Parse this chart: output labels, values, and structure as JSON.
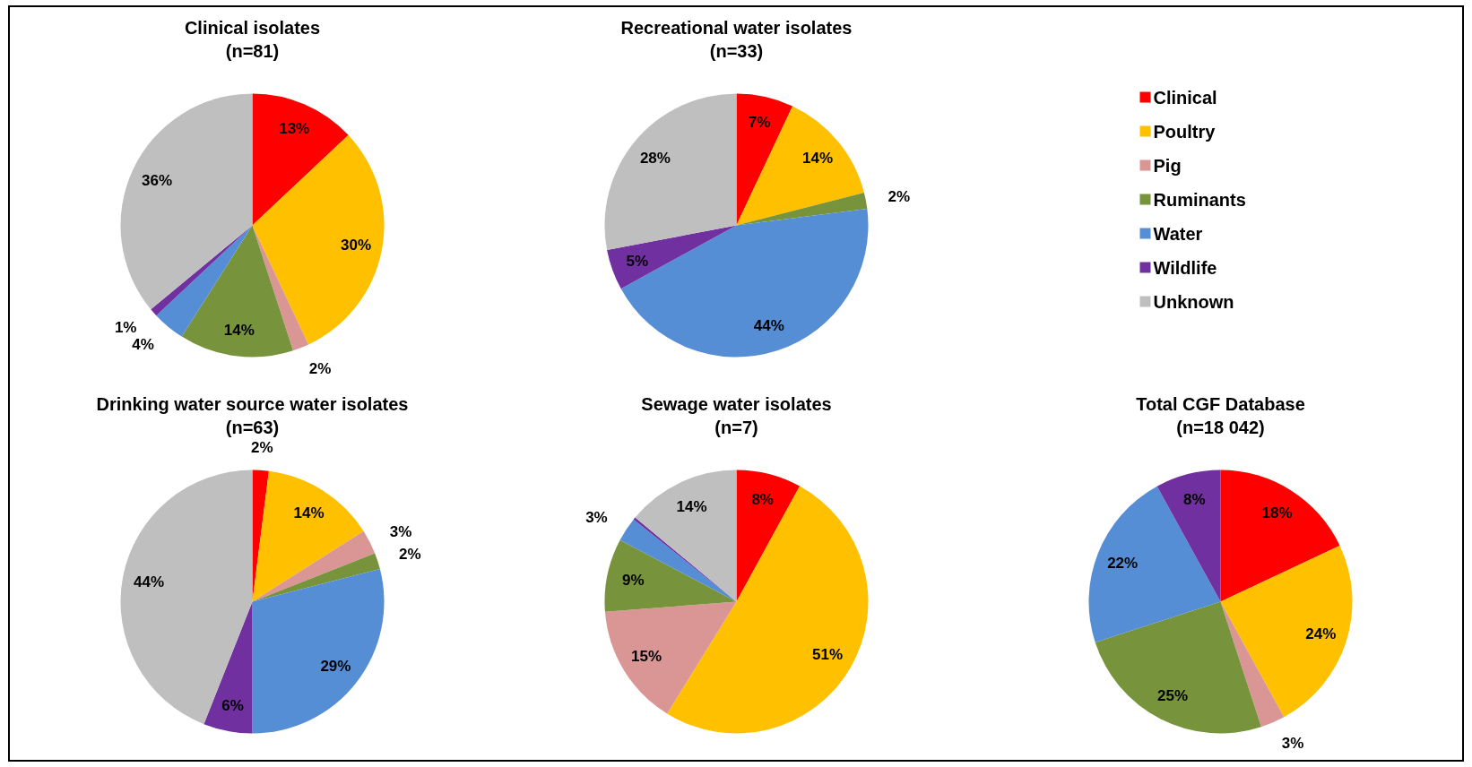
{
  "chart_data": [
    {
      "type": "pie",
      "title": "Clinical isolates",
      "subtitle": "(n=81)",
      "categories": [
        "Clinical",
        "Poultry",
        "Pig",
        "Ruminants",
        "Water",
        "Wildlife",
        "Unknown"
      ],
      "values": [
        13,
        30,
        2,
        14,
        4,
        1,
        36
      ],
      "colors": [
        "#ff0000",
        "#ffc000",
        "#da9694",
        "#77933c",
        "#558ed5",
        "#7030a0",
        "#bfbfbf"
      ],
      "value_labels": [
        "13%",
        "30%",
        "2%",
        "14%",
        "4%",
        "1%",
        "36%"
      ],
      "legend": "right"
    },
    {
      "type": "pie",
      "title": "Recreational water isolates",
      "subtitle": "(n=33)",
      "categories": [
        null,
        null,
        null,
        null,
        null,
        null,
        null
      ],
      "values": [
        7,
        14,
        0,
        2,
        44,
        5,
        28
      ],
      "colors": [
        "#ff0000",
        "#ffc000",
        "#da9694",
        "#77933c",
        "#558ed5",
        "#7030a0",
        "#bfbfbf"
      ],
      "value_labels": [
        "7%",
        "14%",
        null,
        "2%",
        "44%",
        "5%",
        "28%"
      ]
    },
    {
      "type": "pie",
      "title": "Drinking water source water isolates",
      "subtitle": "(n=63)",
      "categories": [
        null,
        null,
        null,
        null,
        null,
        null,
        null
      ],
      "values": [
        2,
        14,
        3,
        2,
        29,
        6,
        44
      ],
      "colors": [
        "#ff0000",
        "#ffc000",
        "#da9694",
        "#77933c",
        "#558ed5",
        "#7030a0",
        "#bfbfbf"
      ],
      "value_labels": [
        "2%",
        "14%",
        "3%",
        "2%",
        "29%",
        "6%",
        "44%"
      ]
    },
    {
      "type": "pie",
      "title": "Sewage water isolates",
      "subtitle": "(n=7)",
      "categories": [
        null,
        null,
        null,
        null,
        null,
        null,
        null
      ],
      "values": [
        8,
        51,
        15,
        9,
        3,
        0.3,
        14
      ],
      "colors": [
        "#ff0000",
        "#ffc000",
        "#da9694",
        "#77933c",
        "#558ed5",
        "#7030a0",
        "#bfbfbf"
      ],
      "value_labels": [
        "8%",
        "51%",
        "15%",
        "9%",
        "3%",
        null,
        "14%"
      ]
    },
    {
      "type": "pie",
      "title": "Total CGF Database",
      "subtitle": "(n=18 042)",
      "categories": [
        null,
        null,
        null,
        null,
        null,
        null,
        null
      ],
      "values": [
        18,
        24,
        3,
        25,
        22,
        8,
        0
      ],
      "colors": [
        "#ff0000",
        "#ffc000",
        "#da9694",
        "#77933c",
        "#558ed5",
        "#7030a0",
        "#bfbfbf"
      ],
      "value_labels": [
        "18%",
        "24%",
        "3%",
        "25%",
        "22%",
        "8%",
        null
      ]
    }
  ]
}
